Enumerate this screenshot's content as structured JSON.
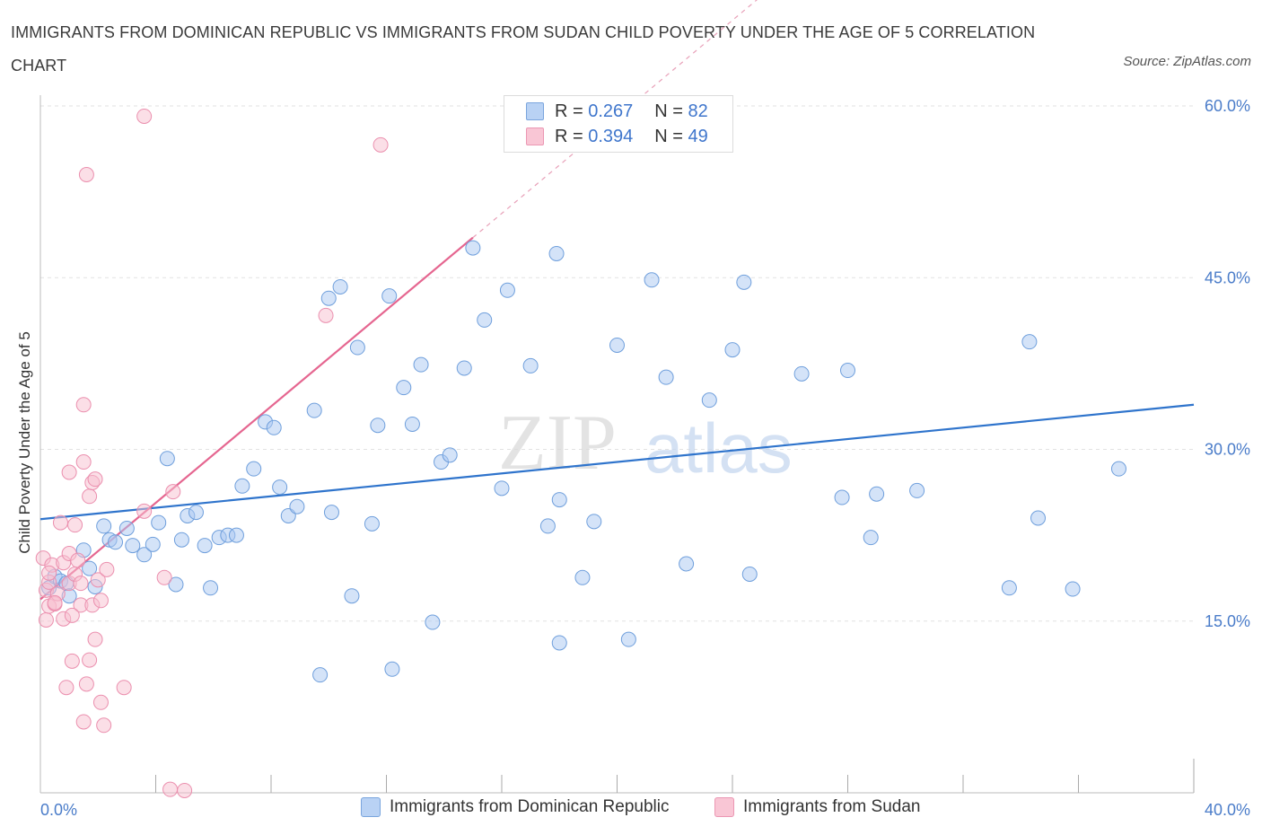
{
  "title": "IMMIGRANTS FROM DOMINICAN REPUBLIC VS IMMIGRANTS FROM SUDAN CHILD POVERTY UNDER THE AGE OF 5 CORRELATION CHART",
  "source": "Source: ZipAtlas.com",
  "watermark": {
    "zip": "ZIP",
    "atlas": "atlas"
  },
  "legend": {
    "r_label": "R =",
    "n_label": "N =",
    "rows": [
      {
        "r": "0.267",
        "n": "82"
      },
      {
        "r": "0.394",
        "n": "49"
      }
    ]
  },
  "chart_data": {
    "type": "scatter",
    "title": "IMMIGRANTS FROM DOMINICAN REPUBLIC VS IMMIGRANTS FROM SUDAN CHILD POVERTY UNDER THE AGE OF 5 CORRELATION CHART",
    "xlabel": "",
    "ylabel": "Child Poverty Under the Age of 5",
    "xlim": [
      0,
      40
    ],
    "ylim": [
      0,
      60
    ],
    "x_tick_labels": [
      {
        "value": 0,
        "label": "0.0%"
      },
      {
        "value": 40,
        "label": "40.0%"
      }
    ],
    "y_tick_labels": [
      {
        "value": 15,
        "label": "15.0%"
      },
      {
        "value": 30,
        "label": "30.0%"
      },
      {
        "value": 45,
        "label": "45.0%"
      },
      {
        "value": 60,
        "label": "60.0%"
      }
    ],
    "grid": true,
    "legend_placement": "top-center",
    "series": [
      {
        "name": "Immigrants from Dominican Republic",
        "color": "#a9c8f2",
        "stroke": "#6f9fdc",
        "line_color": "#2f74cc",
        "trend": {
          "x": [
            0,
            40
          ],
          "y": [
            23.9,
            33.9
          ]
        },
        "points": [
          [
            0.3,
            17.9
          ],
          [
            0.5,
            18.9
          ],
          [
            0.7,
            18.5
          ],
          [
            0.9,
            18.3
          ],
          [
            1.0,
            17.2
          ],
          [
            1.5,
            21.2
          ],
          [
            1.7,
            19.6
          ],
          [
            1.9,
            18.0
          ],
          [
            2.2,
            23.3
          ],
          [
            2.4,
            22.1
          ],
          [
            2.6,
            21.9
          ],
          [
            3.0,
            23.1
          ],
          [
            3.2,
            21.6
          ],
          [
            3.6,
            20.8
          ],
          [
            3.9,
            21.7
          ],
          [
            4.1,
            23.6
          ],
          [
            4.4,
            29.2
          ],
          [
            4.7,
            18.2
          ],
          [
            4.9,
            22.1
          ],
          [
            5.1,
            24.2
          ],
          [
            5.4,
            24.5
          ],
          [
            5.7,
            21.6
          ],
          [
            5.9,
            17.9
          ],
          [
            6.2,
            22.3
          ],
          [
            6.5,
            22.5
          ],
          [
            6.8,
            22.5
          ],
          [
            7.0,
            26.8
          ],
          [
            7.4,
            28.3
          ],
          [
            7.8,
            32.4
          ],
          [
            8.1,
            31.9
          ],
          [
            8.3,
            26.7
          ],
          [
            8.6,
            24.2
          ],
          [
            8.9,
            25.0
          ],
          [
            9.5,
            33.4
          ],
          [
            9.7,
            10.3
          ],
          [
            10.0,
            43.2
          ],
          [
            10.4,
            44.2
          ],
          [
            10.1,
            24.5
          ],
          [
            10.8,
            17.2
          ],
          [
            11.0,
            38.9
          ],
          [
            11.5,
            23.5
          ],
          [
            11.7,
            32.1
          ],
          [
            12.1,
            43.4
          ],
          [
            12.2,
            10.8
          ],
          [
            12.6,
            35.4
          ],
          [
            12.9,
            32.2
          ],
          [
            13.2,
            37.4
          ],
          [
            13.6,
            14.9
          ],
          [
            13.9,
            28.9
          ],
          [
            14.2,
            29.5
          ],
          [
            14.7,
            37.1
          ],
          [
            15.0,
            47.6
          ],
          [
            15.4,
            41.3
          ],
          [
            16.0,
            26.6
          ],
          [
            16.2,
            43.9
          ],
          [
            17.0,
            37.3
          ],
          [
            17.6,
            23.3
          ],
          [
            17.9,
            47.1
          ],
          [
            18.0,
            13.1
          ],
          [
            18.0,
            25.6
          ],
          [
            18.8,
            18.8
          ],
          [
            19.2,
            23.7
          ],
          [
            20.0,
            39.1
          ],
          [
            20.4,
            13.4
          ],
          [
            21.2,
            44.8
          ],
          [
            21.7,
            36.3
          ],
          [
            22.4,
            20.0
          ],
          [
            23.2,
            34.3
          ],
          [
            24.0,
            38.7
          ],
          [
            24.4,
            44.6
          ],
          [
            24.6,
            19.1
          ],
          [
            26.4,
            36.6
          ],
          [
            27.8,
            25.8
          ],
          [
            28.0,
            36.9
          ],
          [
            28.8,
            22.3
          ],
          [
            29.0,
            26.1
          ],
          [
            30.4,
            26.4
          ],
          [
            33.6,
            17.9
          ],
          [
            34.3,
            39.4
          ],
          [
            34.6,
            24.0
          ],
          [
            35.8,
            17.8
          ],
          [
            37.4,
            28.3
          ]
        ]
      },
      {
        "name": "Immigrants from Sudan",
        "color": "#f8bfd0",
        "stroke": "#eb8fae",
        "line_color": "#e56690",
        "trend": {
          "x": [
            0,
            15
          ],
          "y": [
            16.9,
            48.5
          ]
        },
        "trend_dashed": {
          "x": [
            15,
            26.0
          ],
          "y": [
            48.5,
            71.7
          ]
        },
        "points": [
          [
            0.1,
            20.5
          ],
          [
            0.2,
            17.7
          ],
          [
            0.2,
            15.1
          ],
          [
            0.3,
            18.4
          ],
          [
            0.3,
            16.3
          ],
          [
            0.4,
            19.9
          ],
          [
            0.5,
            16.5
          ],
          [
            0.6,
            17.4
          ],
          [
            0.7,
            23.6
          ],
          [
            0.8,
            15.2
          ],
          [
            0.8,
            20.1
          ],
          [
            0.9,
            9.2
          ],
          [
            1.0,
            18.3
          ],
          [
            1.0,
            20.9
          ],
          [
            1.0,
            28.0
          ],
          [
            1.1,
            11.5
          ],
          [
            1.2,
            19.1
          ],
          [
            1.2,
            23.4
          ],
          [
            1.3,
            20.3
          ],
          [
            1.4,
            16.4
          ],
          [
            1.4,
            18.3
          ],
          [
            1.5,
            28.9
          ],
          [
            1.5,
            6.2
          ],
          [
            1.5,
            33.9
          ],
          [
            1.6,
            54.0
          ],
          [
            1.6,
            9.5
          ],
          [
            1.7,
            25.9
          ],
          [
            1.7,
            11.6
          ],
          [
            1.8,
            27.1
          ],
          [
            1.8,
            16.4
          ],
          [
            1.9,
            13.4
          ],
          [
            1.9,
            27.4
          ],
          [
            2.0,
            18.6
          ],
          [
            2.1,
            16.8
          ],
          [
            2.1,
            7.9
          ],
          [
            2.2,
            5.9
          ],
          [
            2.3,
            19.5
          ],
          [
            2.9,
            9.2
          ],
          [
            3.6,
            24.6
          ],
          [
            3.6,
            59.1
          ],
          [
            4.3,
            18.8
          ],
          [
            4.5,
            0.3
          ],
          [
            4.6,
            26.3
          ],
          [
            5.0,
            0.2
          ],
          [
            9.9,
            41.7
          ],
          [
            11.8,
            56.6
          ],
          [
            0.5,
            16.6
          ],
          [
            1.1,
            15.5
          ],
          [
            0.3,
            19.2
          ]
        ]
      }
    ]
  }
}
